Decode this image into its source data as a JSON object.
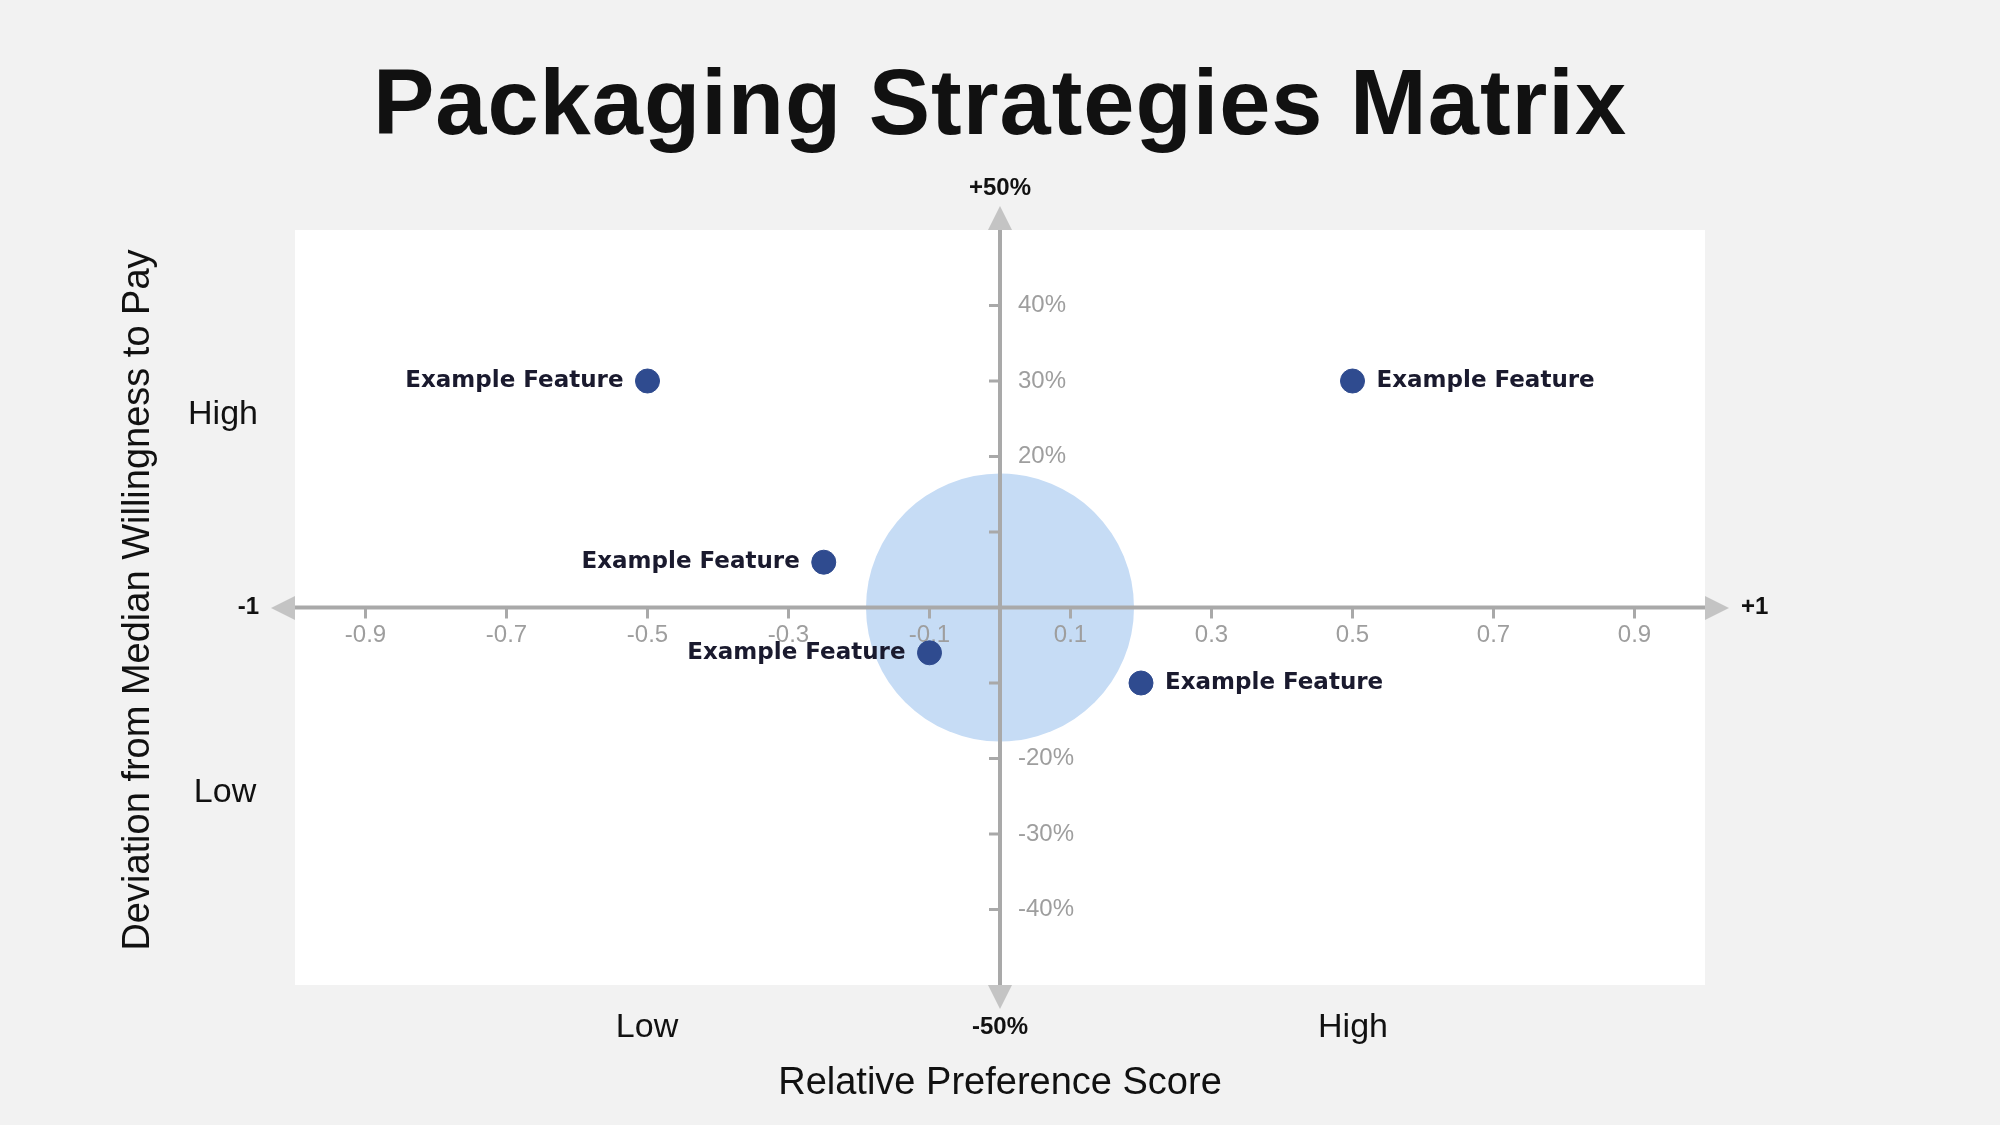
{
  "chart_data": {
    "type": "scatter",
    "title": "Packaging Strategies Matrix",
    "xlabel": "Relative Preference Score",
    "ylabel": "Deviation from Median Willingness to Pay",
    "xlim": [
      -1,
      1
    ],
    "xticks": [
      -0.9,
      -0.7,
      -0.5,
      -0.3,
      -0.1,
      0.1,
      0.3,
      0.5,
      0.7,
      0.9
    ],
    "ylim": [
      -50,
      50
    ],
    "yticks": [
      {
        "value": 40,
        "label": "40%"
      },
      {
        "value": 30,
        "label": "30%"
      },
      {
        "value": 20,
        "label": "20%"
      },
      {
        "value": 10,
        "label": null
      },
      {
        "value": -10,
        "label": null
      },
      {
        "value": -20,
        "label": "-20%"
      },
      {
        "value": -30,
        "label": "-30%"
      },
      {
        "value": -40,
        "label": "-40%"
      }
    ],
    "grid": false,
    "legend": false,
    "marker": "circle",
    "series": [
      {
        "type": "bubble",
        "color": "#c6dcf5",
        "x": [
          0
        ],
        "values": [
          0
        ],
        "sizes": [
          1
        ]
      },
      {
        "type": "scatter",
        "color": "#2f4b8f",
        "x": [
          -0.5,
          0.5,
          -0.25,
          -0.1,
          0.2
        ],
        "values": [
          30,
          30,
          6,
          -6,
          -10
        ]
      }
    ],
    "annotations": [
      "-1",
      "+1",
      "+50%",
      "-50%",
      "High",
      "Low",
      "Low",
      "High",
      {
        "text": "Example Feature",
        "x": -0.5,
        "y": 30
      },
      {
        "text": "Example Feature",
        "x": 0.5,
        "y": 30
      },
      {
        "text": "Example Feature",
        "x": -0.25,
        "y": 6
      },
      {
        "text": "Example Feature",
        "x": -0.1,
        "y": -6
      },
      {
        "text": "Example Feature",
        "x": 0.2,
        "y": -10
      }
    ]
  }
}
